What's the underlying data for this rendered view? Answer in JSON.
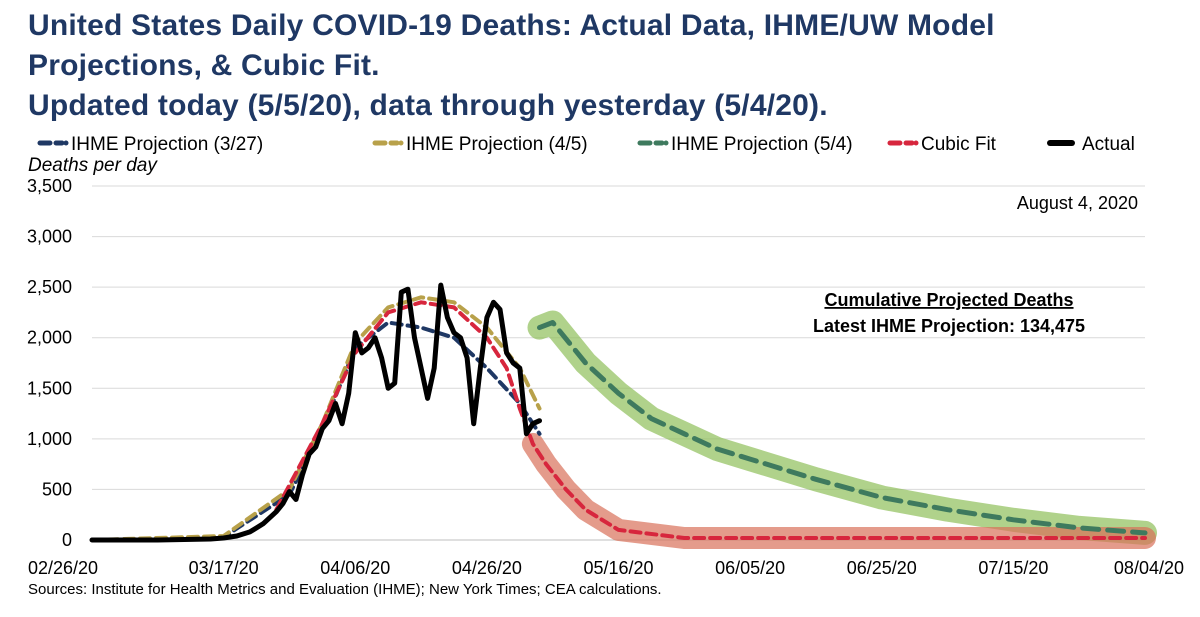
{
  "title_lines": [
    "United States Daily COVID-19 Deaths: Actual Data, IHME/UW Model",
    "Projections, & Cubic Fit.",
    "Updated today (5/5/20), data through yesterday (5/4/20)."
  ],
  "source": "Sources: Institute for Health Metrics and Evaluation (IHME); New York Times; CEA calculations.",
  "date_stamp": "August 4, 2020",
  "annotation": {
    "heading": "Cumulative Projected Deaths",
    "detail": "Latest IHME Projection: 134,475"
  },
  "colors": {
    "title": "#1f3864",
    "ihme_327": "#1f3864",
    "ihme_45": "#b8a14a",
    "ihme_54": "#3e7a5e",
    "cubic": "#d7263d",
    "actual": "#000000",
    "green_band": "#8fbf5a",
    "red_band": "#d9705a"
  },
  "chart_data": {
    "type": "line",
    "title": "United States Daily COVID-19 Deaths: Actual Data, IHME/UW Model Projections, & Cubic Fit.",
    "ylabel": "Deaths per day",
    "xlabel": "",
    "ylim": [
      0,
      3500
    ],
    "yticks": [
      0,
      500,
      1000,
      1500,
      2000,
      2500,
      3000,
      3500
    ],
    "ytick_labels": [
      "0",
      "500",
      "1,000",
      "1,500",
      "2,000",
      "2,500",
      "3,000",
      "3,500"
    ],
    "xlim_day_index": [
      0,
      160
    ],
    "xticks_day_index": [
      0,
      20,
      40,
      60,
      80,
      100,
      120,
      140,
      160
    ],
    "xtick_labels": [
      "02/26/20",
      "03/17/20",
      "04/06/20",
      "04/26/20",
      "05/16/20",
      "06/05/20",
      "06/25/20",
      "07/15/20",
      "08/04/20"
    ],
    "legend": [
      "IHME Projection (3/27)",
      "IHME Projection (4/5)",
      "IHME Projection (5/4)",
      "Cubic Fit",
      "Actual"
    ],
    "legend_position": "top",
    "series": [
      {
        "name": "Actual",
        "x": [
          0,
          10,
          18,
          20,
          22,
          24,
          26,
          28,
          29,
          30,
          31,
          32,
          33,
          34,
          35,
          36,
          37,
          38,
          39,
          40,
          41,
          42,
          43,
          44,
          45,
          46,
          47,
          48,
          49,
          50,
          51,
          52,
          53,
          54,
          55,
          56,
          57,
          58,
          59,
          60,
          61,
          62,
          63,
          64,
          65,
          66,
          67,
          68
        ],
        "y": [
          0,
          0,
          10,
          20,
          40,
          80,
          160,
          280,
          360,
          480,
          400,
          650,
          850,
          920,
          1100,
          1180,
          1350,
          1150,
          1450,
          2050,
          1850,
          1900,
          2000,
          1800,
          1500,
          1550,
          2450,
          2480,
          2000,
          1700,
          1400,
          1700,
          2520,
          2200,
          2050,
          2000,
          1800,
          1150,
          1700,
          2200,
          2350,
          2280,
          1850,
          1750,
          1700,
          1050,
          1150,
          1180
        ]
      },
      {
        "name": "IHME Projection (3/27)",
        "x": [
          0,
          20,
          30,
          35,
          40,
          45,
          50,
          55,
          60,
          65,
          68
        ],
        "y": [
          0,
          30,
          450,
          1100,
          1900,
          2150,
          2100,
          2000,
          1700,
          1350,
          1050
        ]
      },
      {
        "name": "IHME Projection (4/5)",
        "x": [
          0,
          20,
          30,
          35,
          40,
          45,
          50,
          55,
          60,
          65,
          68
        ],
        "y": [
          0,
          40,
          500,
          1150,
          1950,
          2300,
          2400,
          2350,
          2100,
          1700,
          1300
        ]
      },
      {
        "name": "IHME Projection (5/4)",
        "x": [
          68,
          70,
          75,
          80,
          85,
          90,
          95,
          100,
          110,
          120,
          130,
          140,
          150,
          160
        ],
        "y": [
          2100,
          2150,
          1750,
          1450,
          1200,
          1050,
          900,
          800,
          600,
          420,
          300,
          200,
          120,
          70
        ]
      },
      {
        "name": "Cubic Fit",
        "x": [
          28,
          35,
          40,
          45,
          50,
          55,
          60,
          63,
          65,
          67,
          69,
          72,
          75,
          80,
          90,
          100,
          120,
          140,
          160
        ],
        "y": [
          300,
          1150,
          1850,
          2250,
          2350,
          2300,
          2000,
          1700,
          1300,
          950,
          750,
          500,
          300,
          100,
          20,
          20,
          20,
          20,
          20
        ]
      }
    ]
  }
}
